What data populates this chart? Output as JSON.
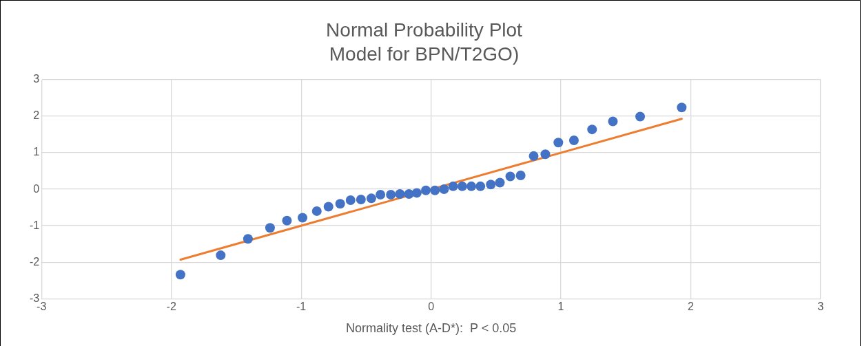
{
  "chart_data": {
    "type": "scatter",
    "title": "Normal Probability Plot",
    "subtitle": "Model for BPN/T2GO)",
    "xlabel": "Normality test (A-D*):  P < 0.05",
    "xlim": [
      -3,
      3
    ],
    "xticks": [
      -3,
      -2,
      -1,
      0,
      1,
      2,
      3
    ],
    "ylim": [
      -3,
      3
    ],
    "yticks": [
      -3,
      -2,
      -1,
      0,
      1,
      2,
      3
    ],
    "grid": true,
    "legend": false,
    "marker": "circle",
    "series": [
      {
        "color": "#4472c4",
        "x": [
          -1.93,
          -1.62,
          -1.41,
          -1.24,
          -1.11,
          -0.99,
          -0.88,
          -0.79,
          -0.7,
          -0.62,
          -0.54,
          -0.46,
          -0.39,
          -0.31,
          -0.24,
          -0.17,
          -0.11,
          -0.04,
          0.03,
          0.1,
          0.17,
          0.24,
          0.31,
          0.38,
          0.46,
          0.53,
          0.61,
          0.69,
          0.79,
          0.88,
          0.98,
          1.1,
          1.24,
          1.4,
          1.61,
          1.93
        ],
        "values": [
          -2.34,
          -1.81,
          -1.36,
          -1.06,
          -0.86,
          -0.78,
          -0.6,
          -0.48,
          -0.4,
          -0.3,
          -0.28,
          -0.25,
          -0.15,
          -0.15,
          -0.13,
          -0.13,
          -0.1,
          -0.03,
          -0.03,
          0,
          0.08,
          0.08,
          0.08,
          0.08,
          0.13,
          0.18,
          0.35,
          0.38,
          0.91,
          0.96,
          1.28,
          1.34,
          1.64,
          1.86,
          1.99,
          2.24
        ]
      },
      {
        "type": "line",
        "color": "#ed7d31",
        "x": [
          -1.93,
          1.93
        ],
        "values": [
          -1.93,
          1.93
        ],
        "marker": "none"
      }
    ]
  }
}
